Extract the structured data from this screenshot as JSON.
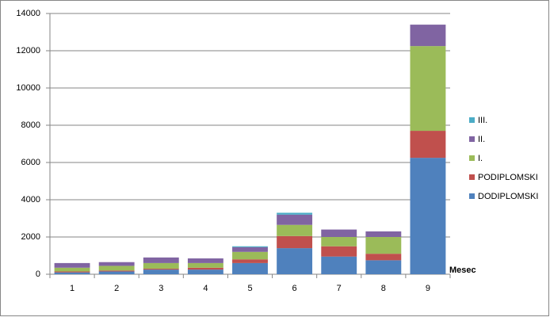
{
  "chart_data": {
    "type": "stacked-bar",
    "x_label": "Mesec",
    "categories": [
      "1",
      "2",
      "3",
      "4",
      "5",
      "6",
      "7",
      "8",
      "9"
    ],
    "series": [
      {
        "name": "DODIPLOMSKI",
        "color": "#4f81bd",
        "values": [
          100,
          150,
          250,
          250,
          600,
          1400,
          950,
          750,
          6250
        ]
      },
      {
        "name": "PODIPLOMSKI",
        "color": "#c0504d",
        "values": [
          50,
          50,
          50,
          100,
          200,
          650,
          550,
          350,
          1450
        ]
      },
      {
        "name": "I.",
        "color": "#9bbb59",
        "values": [
          200,
          250,
          300,
          250,
          400,
          600,
          500,
          900,
          4550
        ]
      },
      {
        "name": "II.",
        "color": "#8064a2",
        "values": [
          250,
          200,
          300,
          250,
          250,
          550,
          400,
          300,
          1150
        ]
      },
      {
        "name": "III.",
        "color": "#4bacc6",
        "values": [
          0,
          0,
          0,
          0,
          50,
          100,
          0,
          0,
          0
        ]
      }
    ],
    "ylim": [
      0,
      14000
    ],
    "yticks": [
      0,
      2000,
      4000,
      6000,
      8000,
      10000,
      12000,
      14000
    ],
    "grid": true
  }
}
